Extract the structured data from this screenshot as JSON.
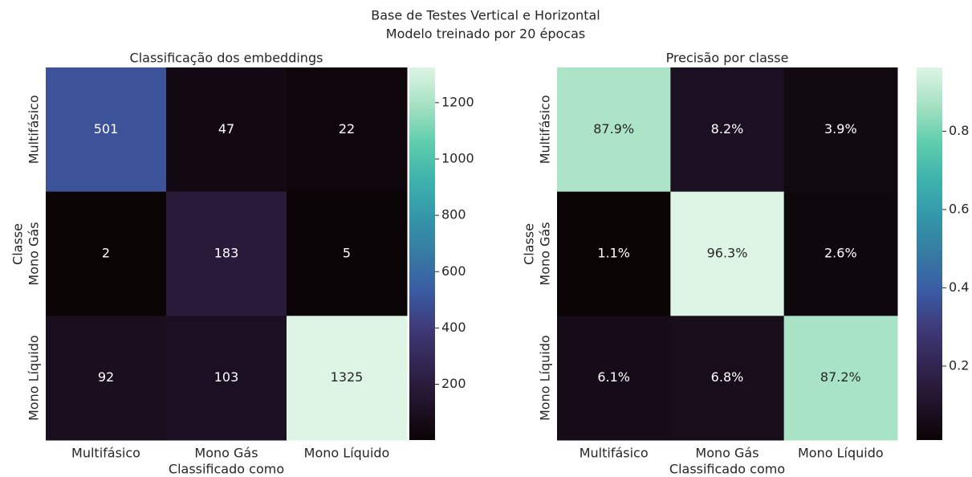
{
  "suptitle": [
    "Base de Testes Vertical e Horizontal",
    "Modelo treinado por 20 épocas"
  ],
  "chart_data": [
    {
      "type": "heatmap",
      "title": "Classificação dos embeddings",
      "xlabel": "Classificado como",
      "ylabel": "Classe",
      "x": [
        "Multifásico",
        "Mono Gás",
        "Mono Líquido"
      ],
      "y": [
        "Multifásico",
        "Mono Gás",
        "Mono Líquido"
      ],
      "values": [
        [
          501,
          47,
          22
        ],
        [
          2,
          183,
          5
        ],
        [
          92,
          103,
          1325
        ]
      ],
      "clim": [
        2,
        1325
      ],
      "cticks": [
        200,
        400,
        600,
        800,
        1000,
        1200
      ],
      "colormap": {
        "stops": [
          0,
          0.15,
          0.3,
          0.4,
          0.5,
          0.6,
          0.7,
          0.8,
          0.9,
          1
        ],
        "colors": [
          "#0b0405",
          "#2b1c3d",
          "#3e3a78",
          "#3b5ba4",
          "#357ba2",
          "#3497a9",
          "#3eb3ad",
          "#60ceac",
          "#a7e2c3",
          "#def5e5"
        ]
      }
    },
    {
      "type": "heatmap",
      "title": "Precisão por classe",
      "xlabel": "Classificado como",
      "ylabel": "Classe",
      "x": [
        "Multifásico",
        "Mono Gás",
        "Mono Líquido"
      ],
      "y": [
        "Multifásico",
        "Mono Gás",
        "Mono Líquido"
      ],
      "values": [
        [
          0.879,
          0.082,
          0.039
        ],
        [
          0.011,
          0.963,
          0.026
        ],
        [
          0.061,
          0.068,
          0.872
        ]
      ],
      "value_labels": [
        [
          "87.9%",
          "8.2%",
          "3.9%"
        ],
        [
          "1.1%",
          "96.3%",
          "2.6%"
        ],
        [
          "6.1%",
          "6.8%",
          "87.2%"
        ]
      ],
      "clim": [
        0.011,
        0.963
      ],
      "cticks": [
        0.2,
        0.4,
        0.6,
        0.8
      ],
      "colormap": {
        "stops": [
          0,
          0.15,
          0.3,
          0.4,
          0.5,
          0.6,
          0.7,
          0.8,
          0.9,
          1
        ],
        "colors": [
          "#0b0405",
          "#2b1c3d",
          "#3e3a78",
          "#3b5ba4",
          "#357ba2",
          "#3497a9",
          "#3eb3ad",
          "#60ceac",
          "#a7e2c3",
          "#def5e5"
        ]
      }
    }
  ]
}
